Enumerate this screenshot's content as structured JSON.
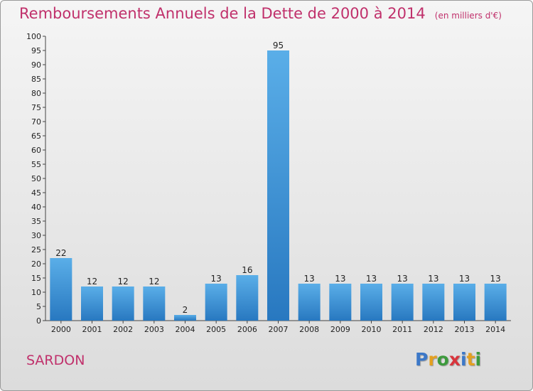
{
  "header": {
    "title": "Remboursements Annuels de la Dette de 2000 à 2014",
    "subtitle": "(en milliers d'€)"
  },
  "footer": {
    "commune": "SARDON",
    "logo_letters": [
      "P",
      "r",
      "o",
      "x",
      "i",
      "t",
      "i"
    ],
    "logo_colors": [
      "#3c78c8",
      "#e4a020",
      "#3c9a3c",
      "#d8343c",
      "#3c78c8",
      "#e4a020",
      "#3c9a3c"
    ]
  },
  "colors": {
    "accent": "#c0306b",
    "bar_light": "#5aaee8",
    "bar_dark": "#2878c0"
  },
  "chart_data": {
    "type": "bar",
    "categories": [
      "2000",
      "2001",
      "2002",
      "2003",
      "2004",
      "2005",
      "2006",
      "2007",
      "2008",
      "2009",
      "2010",
      "2011",
      "2012",
      "2013",
      "2014"
    ],
    "values": [
      22,
      12,
      12,
      12,
      2,
      13,
      16,
      95,
      13,
      13,
      13,
      13,
      13,
      13,
      13
    ],
    "ylim": [
      0,
      100
    ],
    "ytick_step": 5,
    "grid": false,
    "legend": "none"
  }
}
